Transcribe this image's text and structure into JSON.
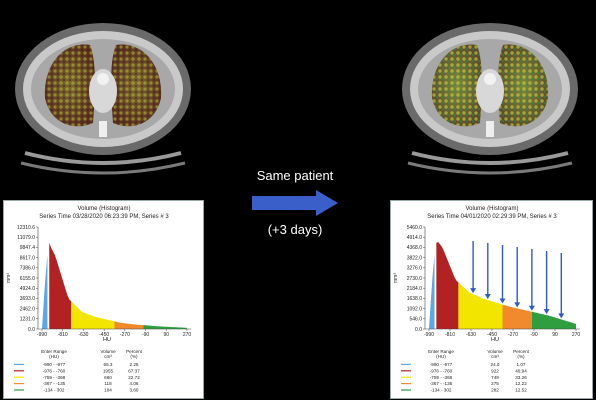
{
  "comparison": {
    "label": "Same patient",
    "interval": "(+3 days)",
    "arrow_color": "#3a5fc9"
  },
  "panels": [
    {
      "title": "Volume (Histogram)",
      "series_time": "Series Time 03/28/2020  06:23:39 PM,  Series # 3",
      "ylabel": "mm³",
      "xlabel": "HU",
      "y_ticks": [
        "12310.6",
        "11079.0",
        "9847.4",
        "8617.0",
        "7386.0",
        "6155.0",
        "4924.0",
        "3693.0",
        "2462.0",
        "1231.0",
        "0.0"
      ],
      "x_ticks": [
        "-990",
        "-810",
        "-630",
        "-450",
        "-270",
        "-90",
        "90",
        "270"
      ],
      "table_headers": [
        "Enter Range (HU)",
        "Volume cm³",
        "Percent (%)"
      ],
      "rows": [
        {
          "range": "-990  -  -977",
          "volume": "65.3",
          "percent": "2.25",
          "color": "#5aa9e6"
        },
        {
          "range": "-976  -  -760",
          "volume": "1955",
          "percent": "67.37",
          "color": "#b22222"
        },
        {
          "range": "-759  -  -368",
          "volume": "660",
          "percent": "22.72",
          "color": "#f2e600"
        },
        {
          "range": "-367  -  -135",
          "volume": "118",
          "percent": "4.06",
          "color": "#f08a2c"
        },
        {
          "range": "-134  -  302",
          "volume": "104",
          "percent": "3.60",
          "color": "#2e9e3f"
        }
      ],
      "arrows": false
    },
    {
      "title": "Volume (Histogram)",
      "series_time": "Series Time 04/01/2020  02:29:39 PM,  Series # 3",
      "ylabel": "mm³",
      "xlabel": "HU",
      "y_ticks": [
        "5460.0",
        "4914.0",
        "4368.0",
        "3822.0",
        "3276.0",
        "2730.0",
        "2184.0",
        "1638.0",
        "1092.0",
        "546.0",
        "0.0"
      ],
      "x_ticks": [
        "-990",
        "-810",
        "-630",
        "-450",
        "-270",
        "-90",
        "90",
        "270"
      ],
      "table_headers": [
        "Enter Range (HU)",
        "Volume cm³",
        "Percent (%)"
      ],
      "rows": [
        {
          "range": "-990  -  -977",
          "volume": "24.0",
          "percent": "1.07",
          "color": "#5aa9e6"
        },
        {
          "range": "-976  -  -760",
          "volume": "922",
          "percent": "40.94",
          "color": "#b22222"
        },
        {
          "range": "-759  -  -368",
          "volume": "749",
          "percent": "33.26",
          "color": "#f2e600"
        },
        {
          "range": "-367  -  -135",
          "volume": "275",
          "percent": "12.22",
          "color": "#f08a2c"
        },
        {
          "range": "-134  -  302",
          "volume": "282",
          "percent": "12.52",
          "color": "#2e9e3f"
        }
      ],
      "arrows": true
    }
  ]
}
